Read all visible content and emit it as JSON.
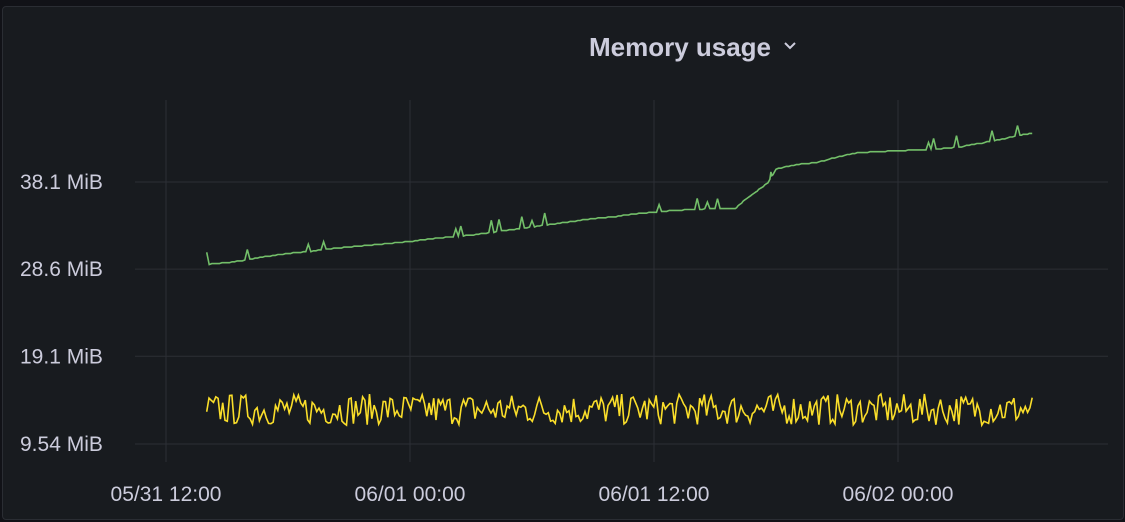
{
  "panel": {
    "title": "Memory usage",
    "menu_icon": "chevron-down-icon"
  },
  "chart_data": {
    "type": "line",
    "title": "Memory usage",
    "xlabel": "",
    "ylabel": "",
    "grid": true,
    "x_ticks": [
      "05/31 12:00",
      "06/01 00:00",
      "06/01 12:00",
      "06/02 00:00"
    ],
    "y_ticks": [
      "9.54 MiB",
      "19.1 MiB",
      "28.6 MiB",
      "38.1 MiB"
    ],
    "y_tick_values": [
      9.54,
      19.1,
      28.6,
      38.1
    ],
    "x_unit": "hours since 05/31 12:00",
    "xlim": [
      -2,
      43
    ],
    "ylim": [
      9.54,
      47.6
    ],
    "series": [
      {
        "color": "#73bf69",
        "points": [
          [
            2,
            29.1
          ],
          [
            3,
            29.3
          ],
          [
            4,
            29.6
          ],
          [
            5,
            30.0
          ],
          [
            6,
            30.3
          ],
          [
            7,
            30.5
          ],
          [
            8,
            30.8
          ],
          [
            9,
            31.0
          ],
          [
            10,
            31.2
          ],
          [
            11,
            31.4
          ],
          [
            12,
            31.6
          ],
          [
            13,
            31.9
          ],
          [
            14,
            32.1
          ],
          [
            15,
            32.3
          ],
          [
            16,
            32.6
          ],
          [
            17,
            32.9
          ],
          [
            18,
            33.2
          ],
          [
            19,
            33.5
          ],
          [
            20,
            33.8
          ],
          [
            21,
            34.1
          ],
          [
            22,
            34.3
          ],
          [
            23,
            34.6
          ],
          [
            24,
            34.8
          ],
          [
            25,
            35.0
          ],
          [
            26,
            35.1
          ],
          [
            27,
            35.2
          ],
          [
            28,
            35.2
          ],
          [
            28.5,
            36.2
          ],
          [
            29,
            37.0
          ],
          [
            29.6,
            38.0
          ],
          [
            30,
            39.5
          ],
          [
            31,
            40.0
          ],
          [
            32,
            40.2
          ],
          [
            33,
            40.8
          ],
          [
            34,
            41.3
          ],
          [
            35,
            41.4
          ],
          [
            36,
            41.5
          ],
          [
            37,
            41.6
          ],
          [
            38,
            41.7
          ],
          [
            39,
            41.9
          ],
          [
            40,
            42.3
          ],
          [
            41,
            42.7
          ],
          [
            42,
            43.2
          ],
          [
            42.6,
            43.4
          ]
        ]
      },
      {
        "color": "#fade2a",
        "mean": 13.3,
        "min": 11.6,
        "max": 15.0,
        "x_range": [
          2,
          42.6
        ]
      }
    ]
  }
}
